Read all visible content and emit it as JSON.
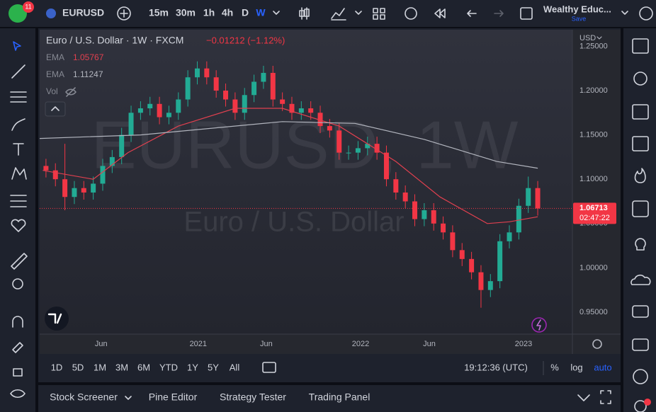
{
  "toolbar": {
    "notifications": "11",
    "symbol": "EURUSD",
    "timeframes": [
      "15m",
      "30m",
      "1h",
      "4h",
      "D",
      "W"
    ],
    "layout_name": "Wealthy Educ...",
    "save": "Save"
  },
  "chart_data": {
    "type": "candlestick",
    "title": "Euro / U.S. Dollar · 1W · FXCM",
    "change": "−0.01212 (−1.12%)",
    "watermark": "EURUSD, 1W",
    "watermark_subtitle": "Euro / U.S. Dollar",
    "currency": "USD",
    "volume_label": "Vol",
    "up_color": "#22ab94",
    "down_color": "#f23645",
    "candles": {
      "x": [
        2,
        5,
        8,
        11,
        14,
        17,
        20,
        23,
        26,
        29,
        32,
        35,
        38,
        41,
        44,
        47,
        50,
        53,
        56,
        59,
        62,
        65,
        68,
        71,
        74,
        77,
        80,
        83,
        86,
        89,
        92,
        95,
        98,
        101,
        104,
        107,
        110,
        113,
        116,
        119,
        122,
        125,
        128,
        131,
        134,
        137,
        140,
        143,
        146,
        149,
        152,
        155,
        158
      ],
      "open": [
        1.115,
        1.11,
        1.1,
        1.08,
        1.09,
        1.085,
        1.095,
        1.115,
        1.125,
        1.15,
        1.175,
        1.18,
        1.185,
        1.17,
        1.175,
        1.19,
        1.215,
        1.225,
        1.215,
        1.2,
        1.19,
        1.175,
        1.195,
        1.21,
        1.22,
        1.19,
        1.185,
        1.175,
        1.18,
        1.175,
        1.16,
        1.155,
        1.13,
        1.13,
        1.135,
        1.14,
        1.13,
        1.1,
        1.085,
        1.075,
        1.055,
        1.065,
        1.05,
        1.04,
        1.02,
        1.01,
        0.995,
        0.975,
        0.985,
        1.03,
        1.04,
        1.07,
        1.09
      ],
      "high": [
        1.123,
        1.118,
        1.14,
        1.098,
        1.098,
        1.103,
        1.123,
        1.133,
        1.158,
        1.183,
        1.188,
        1.193,
        1.193,
        1.183,
        1.198,
        1.223,
        1.233,
        1.233,
        1.223,
        1.208,
        1.198,
        1.203,
        1.218,
        1.228,
        1.228,
        1.198,
        1.193,
        1.188,
        1.188,
        1.183,
        1.168,
        1.163,
        1.138,
        1.143,
        1.148,
        1.148,
        1.138,
        1.108,
        1.093,
        1.083,
        1.073,
        1.073,
        1.058,
        1.048,
        1.028,
        1.018,
        1.003,
        0.993,
        1.038,
        1.048,
        1.078,
        1.103,
        1.098
      ],
      "low": [
        1.102,
        1.092,
        1.065,
        1.072,
        1.077,
        1.077,
        1.087,
        1.107,
        1.117,
        1.142,
        1.167,
        1.172,
        1.162,
        1.162,
        1.167,
        1.182,
        1.207,
        1.207,
        1.192,
        1.182,
        1.167,
        1.167,
        1.187,
        1.202,
        1.182,
        1.177,
        1.167,
        1.167,
        1.167,
        1.152,
        1.147,
        1.122,
        1.122,
        1.122,
        1.127,
        1.122,
        1.092,
        1.077,
        1.067,
        1.047,
        1.047,
        1.042,
        1.032,
        1.012,
        1.002,
        0.987,
        0.955,
        0.967,
        0.977,
        1.022,
        1.032,
        1.062,
        1.059
      ],
      "close": [
        1.11,
        1.1,
        1.08,
        1.09,
        1.085,
        1.095,
        1.115,
        1.125,
        1.15,
        1.175,
        1.18,
        1.185,
        1.17,
        1.175,
        1.19,
        1.215,
        1.225,
        1.215,
        1.2,
        1.19,
        1.175,
        1.195,
        1.21,
        1.22,
        1.19,
        1.185,
        1.175,
        1.18,
        1.175,
        1.16,
        1.155,
        1.13,
        1.13,
        1.135,
        1.14,
        1.13,
        1.1,
        1.085,
        1.075,
        1.055,
        1.065,
        1.05,
        1.04,
        1.02,
        1.01,
        0.995,
        0.975,
        0.985,
        1.03,
        1.04,
        1.07,
        1.09,
        1.067
      ]
    },
    "series": [
      {
        "name": "EMA",
        "color": "#e0404f",
        "last": 1.05767,
        "x": [
          1,
          17,
          28,
          44,
          62,
          77,
          95,
          113,
          127,
          142,
          149,
          158
        ],
        "values": [
          1.11,
          1.1,
          1.13,
          1.16,
          1.18,
          1.18,
          1.16,
          1.12,
          1.08,
          1.05,
          1.052,
          1.05767
        ]
      },
      {
        "name": "EMA",
        "color": "#b2b5be",
        "last": 1.11247,
        "x": [
          0,
          32,
          77,
          100,
          122,
          145,
          158
        ],
        "values": [
          1.146,
          1.15,
          1.165,
          1.163,
          1.145,
          1.12,
          1.11247
        ]
      }
    ],
    "last_price": 1.06713,
    "countdown": "02:47:22",
    "xlim": [
      0,
      169
    ],
    "xticks": [
      {
        "value": 19.5,
        "label": "Jun"
      },
      {
        "value": 50.3,
        "label": "2021"
      },
      {
        "value": 71.9,
        "label": "Jun"
      },
      {
        "value": 101.8,
        "label": "2022"
      },
      {
        "value": 123.6,
        "label": "Jun"
      },
      {
        "value": 153.5,
        "label": "2023"
      }
    ],
    "ylim": [
      0.9252,
      1.2687
    ],
    "yticks": [
      {
        "value": 0.95,
        "label": "0.95000"
      },
      {
        "value": 1.0,
        "label": "1.00000"
      },
      {
        "value": 1.05,
        "label": "1.05000"
      },
      {
        "value": 1.1,
        "label": "1.10000"
      },
      {
        "value": 1.15,
        "label": "1.15000"
      },
      {
        "value": 1.2,
        "label": "1.20000"
      },
      {
        "value": 1.25,
        "label": "1.25000"
      }
    ],
    "grid": false
  },
  "range_bar": {
    "ranges": [
      "1D",
      "5D",
      "1M",
      "3M",
      "6M",
      "YTD",
      "1Y",
      "5Y",
      "All"
    ],
    "clock": "19:12:36 (UTC)",
    "options": [
      "%",
      "log",
      "auto"
    ]
  },
  "bottom_tabs": [
    "Stock Screener",
    "Pine Editor",
    "Strategy Tester",
    "Trading Panel"
  ]
}
